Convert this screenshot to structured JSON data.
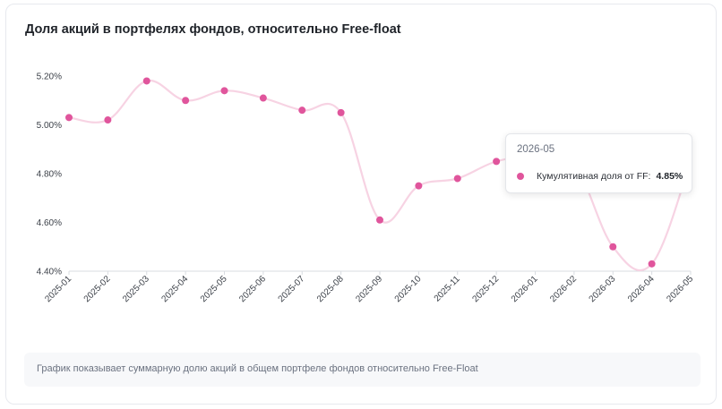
{
  "chart_data": {
    "type": "line",
    "title": "Доля акций в портфелях фондов, относительно Free-float",
    "xlabel": "",
    "ylabel": "",
    "ylim": [
      4.4,
      5.3
    ],
    "yticks": [
      "4.40%",
      "4.60%",
      "4.80%",
      "5.00%",
      "5.20%"
    ],
    "ytick_values": [
      4.4,
      4.6,
      4.8,
      5.0,
      5.2
    ],
    "categories": [
      "2025-01",
      "2025-02",
      "2025-03",
      "2025-04",
      "2025-05",
      "2025-06",
      "2025-07",
      "2025-08",
      "2025-09",
      "2025-10",
      "2025-11",
      "2025-12",
      "2026-01",
      "2026-02",
      "2026-03",
      "2026-04",
      "2026-05"
    ],
    "series": [
      {
        "name": "Кумулятивная доля от FF",
        "values": [
          5.03,
          5.02,
          5.18,
          5.1,
          5.14,
          5.11,
          5.06,
          5.05,
          4.61,
          4.75,
          4.78,
          4.85,
          4.87,
          4.84,
          4.5,
          4.43,
          4.85
        ]
      }
    ],
    "grid": false,
    "line_color": "#f7d3e3",
    "marker_color": "#e0559c"
  },
  "tooltip": {
    "date": "2026-05",
    "series_label": "Кумулятивная доля от FF:",
    "value": "4.85%"
  },
  "note": "График показывает суммарную долю акций в общем портфеле фондов относительно Free-Float"
}
